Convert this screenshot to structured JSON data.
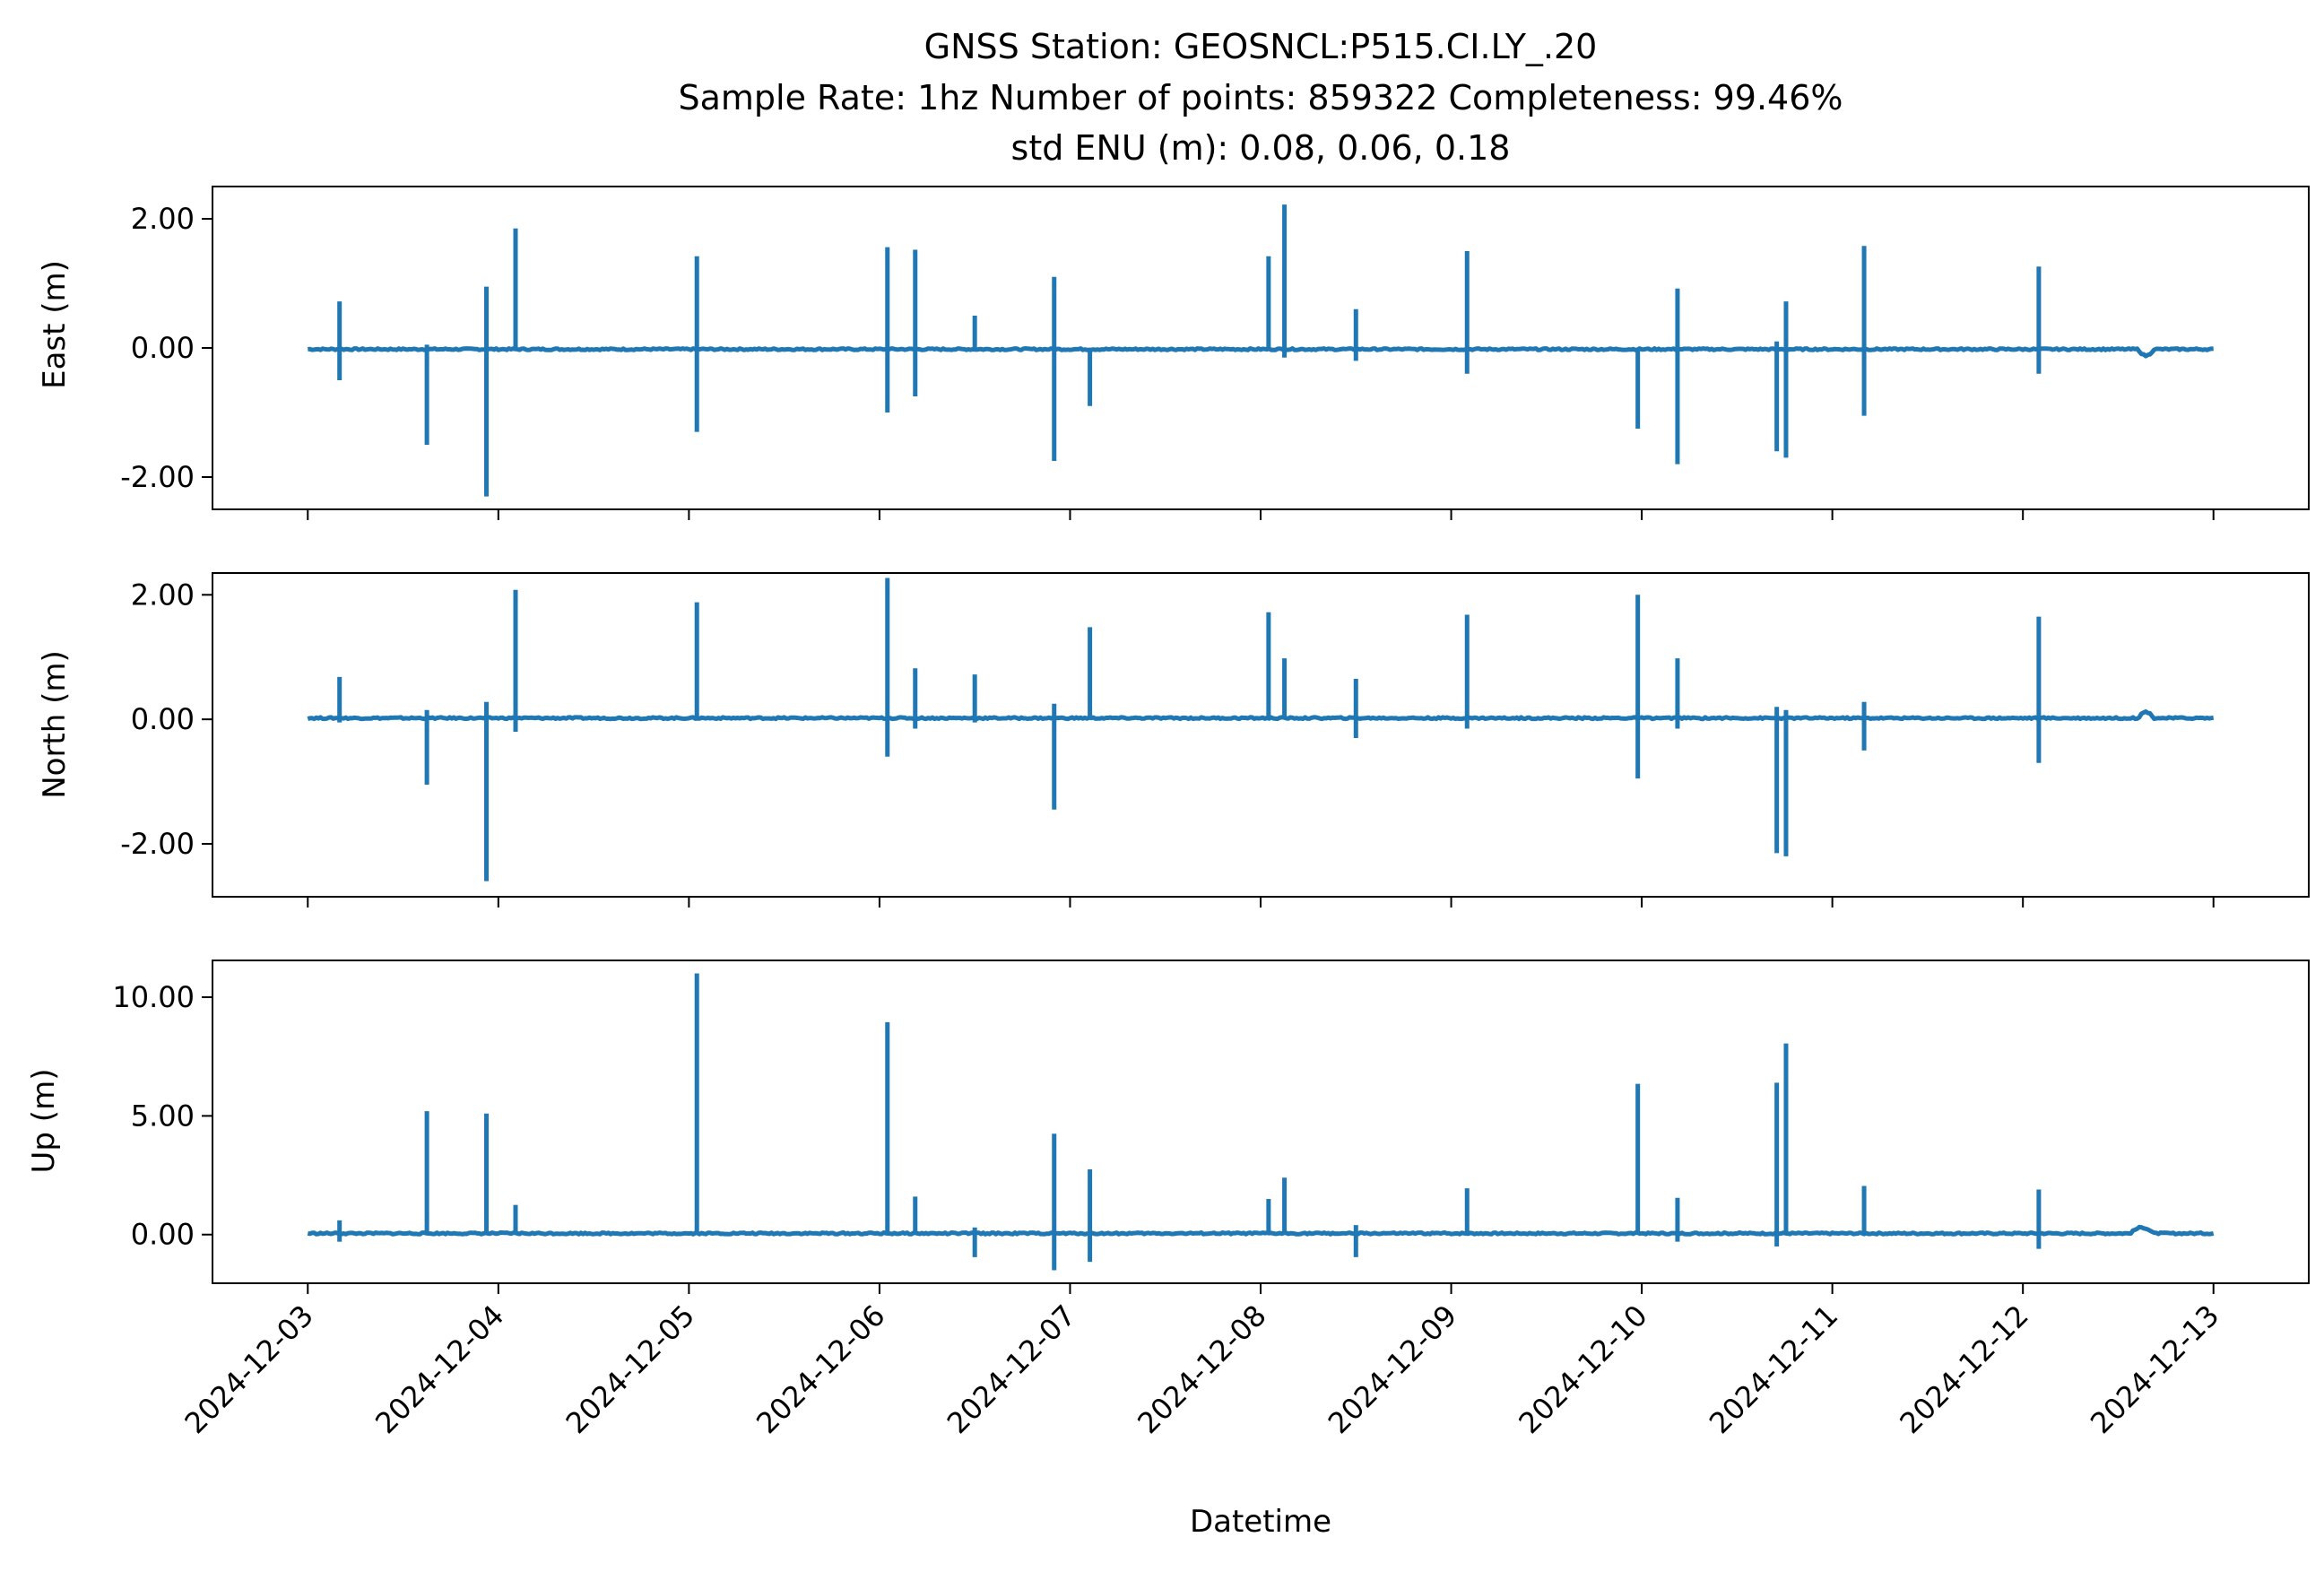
{
  "figure": {
    "title_lines": [
      "GNSS Station: GEOSNCL:P515.CI.LY_.20",
      "Sample Rate: 1hz   Number of points: 859322    Completeness:  99.46%",
      "std ENU (m):  0.08, 0.06, 0.18"
    ],
    "xlabel": "Datetime",
    "series_color": "#1f77b4"
  },
  "chart_data": [
    {
      "type": "line",
      "ylabel": "East (m)",
      "xlim": [
        "2024-12-02T12:00:00",
        "2024-12-13T12:00:00"
      ],
      "ylim": [
        -2.5,
        2.5
      ],
      "yticks": [
        2.0,
        0.0,
        -2.0
      ],
      "ytick_labels": [
        "2.00",
        "0.00",
        "-2.00"
      ],
      "x_range": [
        "2024-12-03T00:00:00",
        "2024-12-13T00:00:00"
      ],
      "baseline": -0.02,
      "drift": {
        "start": "2024-12-12T14:30:00",
        "end": "2024-12-12T16:30:00",
        "offset": -0.1
      },
      "spikes": [
        {
          "t": "2024-12-03T04:00:00",
          "min": -0.5,
          "max": 0.72
        },
        {
          "t": "2024-12-03T15:00:00",
          "min": -1.5,
          "max": 0.05
        },
        {
          "t": "2024-12-03T22:30:00",
          "min": -2.3,
          "max": 0.95
        },
        {
          "t": "2024-12-04T02:10:00",
          "min": 0.0,
          "max": 1.85
        },
        {
          "t": "2024-12-05T01:00:00",
          "min": -1.3,
          "max": 1.42
        },
        {
          "t": "2024-12-06T01:00:00",
          "min": -1.0,
          "max": 1.56
        },
        {
          "t": "2024-12-06T04:30:00",
          "min": -0.75,
          "max": 1.52
        },
        {
          "t": "2024-12-06T12:00:00",
          "min": -0.05,
          "max": 0.5
        },
        {
          "t": "2024-12-06T22:00:00",
          "min": -1.75,
          "max": 1.1
        },
        {
          "t": "2024-12-07T02:30:00",
          "min": -0.9,
          "max": 0.0
        },
        {
          "t": "2024-12-08T01:00:00",
          "min": 0.0,
          "max": 1.42
        },
        {
          "t": "2024-12-08T03:00:00",
          "min": -0.15,
          "max": 2.22
        },
        {
          "t": "2024-12-08T12:00:00",
          "min": -0.2,
          "max": 0.6
        },
        {
          "t": "2024-12-09T02:00:00",
          "min": -0.4,
          "max": 1.5
        },
        {
          "t": "2024-12-09T23:30:00",
          "min": -1.25,
          "max": 0.0
        },
        {
          "t": "2024-12-10T04:30:00",
          "min": -1.8,
          "max": 0.92
        },
        {
          "t": "2024-12-10T17:00:00",
          "min": -1.6,
          "max": 0.1
        },
        {
          "t": "2024-12-10T18:10:00",
          "min": -1.7,
          "max": 0.72
        },
        {
          "t": "2024-12-11T04:00:00",
          "min": -1.05,
          "max": 1.58
        },
        {
          "t": "2024-12-12T02:00:00",
          "min": -0.4,
          "max": 1.26
        }
      ]
    },
    {
      "type": "line",
      "ylabel": "North (m)",
      "xlim": [
        "2024-12-02T12:00:00",
        "2024-12-13T12:00:00"
      ],
      "ylim": [
        -2.85,
        2.35
      ],
      "yticks": [
        2.0,
        0.0,
        -2.0
      ],
      "ytick_labels": [
        "2.00",
        "0.00",
        "-2.00"
      ],
      "x_range": [
        "2024-12-03T00:00:00",
        "2024-12-13T00:00:00"
      ],
      "baseline": 0.02,
      "drift": {
        "start": "2024-12-12T14:30:00",
        "end": "2024-12-12T16:30:00",
        "offset": 0.1
      },
      "spikes": [
        {
          "t": "2024-12-03T04:00:00",
          "min": -0.05,
          "max": 0.68
        },
        {
          "t": "2024-12-03T15:00:00",
          "min": -1.05,
          "max": 0.15
        },
        {
          "t": "2024-12-03T22:30:00",
          "min": -2.6,
          "max": 0.28
        },
        {
          "t": "2024-12-04T02:10:00",
          "min": -0.2,
          "max": 2.08
        },
        {
          "t": "2024-12-05T01:00:00",
          "min": 0.0,
          "max": 1.88
        },
        {
          "t": "2024-12-06T01:00:00",
          "min": -0.6,
          "max": 2.27
        },
        {
          "t": "2024-12-06T04:30:00",
          "min": -0.15,
          "max": 0.82
        },
        {
          "t": "2024-12-06T12:00:00",
          "min": -0.05,
          "max": 0.72
        },
        {
          "t": "2024-12-06T22:00:00",
          "min": -1.45,
          "max": 0.25
        },
        {
          "t": "2024-12-07T02:30:00",
          "min": 0.0,
          "max": 1.48
        },
        {
          "t": "2024-12-08T01:00:00",
          "min": 0.0,
          "max": 1.72
        },
        {
          "t": "2024-12-08T03:00:00",
          "min": 0.0,
          "max": 0.98
        },
        {
          "t": "2024-12-08T12:00:00",
          "min": -0.3,
          "max": 0.65
        },
        {
          "t": "2024-12-09T02:00:00",
          "min": -0.15,
          "max": 1.68
        },
        {
          "t": "2024-12-09T23:30:00",
          "min": -0.95,
          "max": 2.0
        },
        {
          "t": "2024-12-10T04:30:00",
          "min": -0.15,
          "max": 0.98
        },
        {
          "t": "2024-12-10T17:00:00",
          "min": -2.15,
          "max": 0.2
        },
        {
          "t": "2024-12-10T18:10:00",
          "min": -2.2,
          "max": 0.15
        },
        {
          "t": "2024-12-11T04:00:00",
          "min": -0.5,
          "max": 0.28
        },
        {
          "t": "2024-12-12T02:00:00",
          "min": -0.7,
          "max": 1.65
        }
      ]
    },
    {
      "type": "line",
      "ylabel": "Up (m)",
      "xlim": [
        "2024-12-02T12:00:00",
        "2024-12-13T12:00:00"
      ],
      "ylim": [
        -2.05,
        11.55
      ],
      "yticks": [
        10.0,
        5.0,
        0.0
      ],
      "ytick_labels": [
        "10.00",
        "5.00",
        "0.00"
      ],
      "x_range": [
        "2024-12-03T00:00:00",
        "2024-12-13T00:00:00"
      ],
      "baseline": 0.05,
      "drift": {
        "start": "2024-12-12T13:30:00",
        "end": "2024-12-12T16:30:00",
        "offset": 0.25
      },
      "spikes": [
        {
          "t": "2024-12-03T04:00:00",
          "min": -0.3,
          "max": 0.6
        },
        {
          "t": "2024-12-03T15:00:00",
          "min": 0.0,
          "max": 5.2
        },
        {
          "t": "2024-12-03T22:30:00",
          "min": 0.0,
          "max": 5.1
        },
        {
          "t": "2024-12-04T02:10:00",
          "min": 0.0,
          "max": 1.25
        },
        {
          "t": "2024-12-05T01:00:00",
          "min": 0.0,
          "max": 11.0
        },
        {
          "t": "2024-12-06T01:00:00",
          "min": 0.0,
          "max": 8.95
        },
        {
          "t": "2024-12-06T04:30:00",
          "min": 0.0,
          "max": 1.6
        },
        {
          "t": "2024-12-06T12:00:00",
          "min": -0.95,
          "max": 0.3
        },
        {
          "t": "2024-12-06T22:00:00",
          "min": -1.5,
          "max": 4.25
        },
        {
          "t": "2024-12-07T02:30:00",
          "min": -1.15,
          "max": 2.75
        },
        {
          "t": "2024-12-08T01:00:00",
          "min": 0.0,
          "max": 1.5
        },
        {
          "t": "2024-12-08T03:00:00",
          "min": 0.0,
          "max": 2.4
        },
        {
          "t": "2024-12-08T12:00:00",
          "min": -0.95,
          "max": 0.4
        },
        {
          "t": "2024-12-09T02:00:00",
          "min": 0.0,
          "max": 1.95
        },
        {
          "t": "2024-12-09T23:30:00",
          "min": 0.0,
          "max": 6.35
        },
        {
          "t": "2024-12-10T04:30:00",
          "min": -0.3,
          "max": 1.55
        },
        {
          "t": "2024-12-10T17:00:00",
          "min": -0.5,
          "max": 6.4
        },
        {
          "t": "2024-12-10T18:10:00",
          "min": 0.0,
          "max": 8.05
        },
        {
          "t": "2024-12-11T04:00:00",
          "min": 0.0,
          "max": 2.05
        },
        {
          "t": "2024-12-12T02:00:00",
          "min": -0.6,
          "max": 1.9
        }
      ]
    }
  ],
  "xticks": [
    {
      "t": "2024-12-03T00:00:00",
      "label": "2024-12-03"
    },
    {
      "t": "2024-12-04T00:00:00",
      "label": "2024-12-04"
    },
    {
      "t": "2024-12-05T00:00:00",
      "label": "2024-12-05"
    },
    {
      "t": "2024-12-06T00:00:00",
      "label": "2024-12-06"
    },
    {
      "t": "2024-12-07T00:00:00",
      "label": "2024-12-07"
    },
    {
      "t": "2024-12-08T00:00:00",
      "label": "2024-12-08"
    },
    {
      "t": "2024-12-09T00:00:00",
      "label": "2024-12-09"
    },
    {
      "t": "2024-12-10T00:00:00",
      "label": "2024-12-10"
    },
    {
      "t": "2024-12-11T00:00:00",
      "label": "2024-12-11"
    },
    {
      "t": "2024-12-12T00:00:00",
      "label": "2024-12-12"
    },
    {
      "t": "2024-12-13T00:00:00",
      "label": "2024-12-13"
    }
  ]
}
